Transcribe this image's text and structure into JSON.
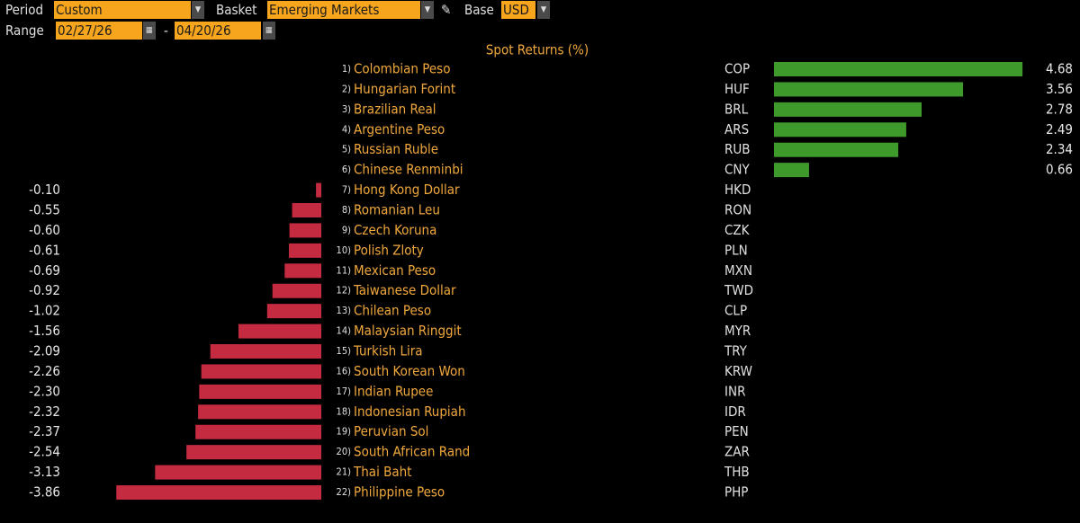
{
  "controls": {
    "period_label": "Period",
    "period": "Custom",
    "basket_label": "Basket",
    "basket": "Emerging Markets",
    "base_label": "Base",
    "base": "USD",
    "range_label": "Range",
    "range_start": "02/27/26",
    "range_sep": "-",
    "range_end": "04/20/26"
  },
  "chart_data": {
    "type": "bar",
    "title": "Spot Returns (%)",
    "ranks": [
      "1)",
      "2)",
      "3)",
      "4)",
      "5)",
      "6)",
      "7)",
      "8)",
      "9)",
      "10)",
      "11)",
      "12)",
      "13)",
      "14)",
      "15)",
      "16)",
      "17)",
      "18)",
      "19)",
      "20)",
      "21)",
      "22)"
    ],
    "categories": [
      "Colombian Peso",
      "Hungarian Forint",
      "Brazilian Real",
      "Argentine Peso",
      "Russian Ruble",
      "Chinese Renminbi",
      "Hong Kong Dollar",
      "Romanian Leu",
      "Czech Koruna",
      "Polish Zloty",
      "Mexican Peso",
      "Taiwanese Dollar",
      "Chilean Peso",
      "Malaysian Ringgit",
      "Turkish Lira",
      "South Korean Won",
      "Indian Rupee",
      "Indonesian Rupiah",
      "Peruvian Sol",
      "South African Rand",
      "Thai Baht",
      "Philippine Peso"
    ],
    "codes": [
      "COP",
      "HUF",
      "BRL",
      "ARS",
      "RUB",
      "CNY",
      "HKD",
      "RON",
      "CZK",
      "PLN",
      "MXN",
      "TWD",
      "CLP",
      "MYR",
      "TRY",
      "KRW",
      "INR",
      "IDR",
      "PEN",
      "ZAR",
      "THB",
      "PHP"
    ],
    "values": [
      4.68,
      3.56,
      2.78,
      2.49,
      2.34,
      0.66,
      -0.1,
      -0.55,
      -0.6,
      -0.61,
      -0.69,
      -0.92,
      -1.02,
      -1.56,
      -2.09,
      -2.26,
      -2.3,
      -2.32,
      -2.37,
      -2.54,
      -3.13,
      -3.86
    ],
    "value_labels": [
      "4.68",
      "3.56",
      "2.78",
      "2.49",
      "2.34",
      "0.66",
      "-0.10",
      "-0.55",
      "-0.60",
      "-0.61",
      "-0.69",
      "-0.92",
      "-1.02",
      "-1.56",
      "-2.09",
      "-2.26",
      "-2.30",
      "-2.32",
      "-2.37",
      "-2.54",
      "-3.13",
      "-3.86"
    ],
    "positive_color": "#3f9a2c",
    "negative_color": "#c42a40"
  }
}
